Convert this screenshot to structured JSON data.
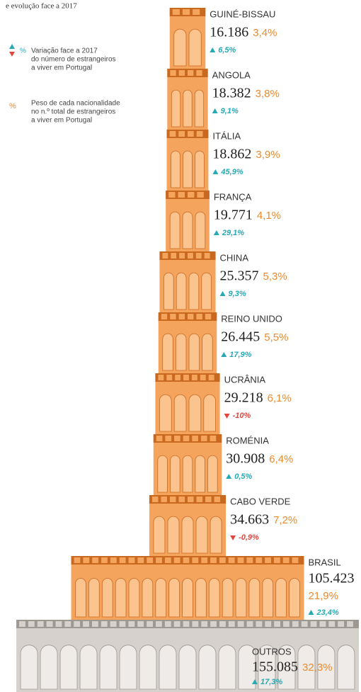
{
  "chart_data": {
    "type": "tower",
    "subtitle": "e evolução face a 2017",
    "legend": {
      "change_marker": "%",
      "change_lines": [
        "Variação face a 2017",
        "do número de estrangeiros",
        "a viver em Portugal"
      ],
      "share_marker": "%",
      "share_lines": [
        "Peso de cada nacionalidade",
        "no n.º total de estrangeiros",
        "a viver em Portugal"
      ]
    },
    "categories": [
      "GUINÉ-BISSAU",
      "ANGOLA",
      "ITÁLIA",
      "FRANÇA",
      "CHINA",
      "REINO UNIDO",
      "UCRÂNIA",
      "ROMÉNIA",
      "CABO VERDE",
      "BRASIL",
      "OUTROS"
    ],
    "values": [
      16186,
      18382,
      18862,
      19771,
      25357,
      26445,
      29218,
      30908,
      34663,
      105423,
      155085
    ],
    "value_labels": [
      "16.186",
      "18.382",
      "18.862",
      "19.771",
      "25.357",
      "26.445",
      "29.218",
      "30.908",
      "34.663",
      "105.423",
      "155.085"
    ],
    "shares": [
      3.4,
      3.8,
      3.9,
      4.1,
      5.3,
      5.5,
      6.1,
      6.4,
      7.2,
      21.9,
      32.3
    ],
    "share_labels": [
      "3,4%",
      "3,8%",
      "3,9%",
      "4,1%",
      "5,3%",
      "5,5%",
      "6,1%",
      "6,4%",
      "7,2%",
      "21,9%",
      "32,3%"
    ],
    "changes": [
      6.5,
      9.1,
      45.9,
      29.1,
      9.3,
      17.9,
      -10,
      0.5,
      -0.9,
      23.4,
      17.3
    ],
    "change_labels": [
      "6,5%",
      "9,1%",
      "45,9%",
      "29,1%",
      "9,3%",
      "17,9%",
      "-10%",
      "0,5%",
      "-0,9%",
      "23,4%",
      "17,3%"
    ],
    "color": "#f5a45e",
    "other_color": "#d6d1cc",
    "share_color": "#ec8a2e",
    "up_color": "#26a9b3",
    "down_color": "#e2453b"
  }
}
